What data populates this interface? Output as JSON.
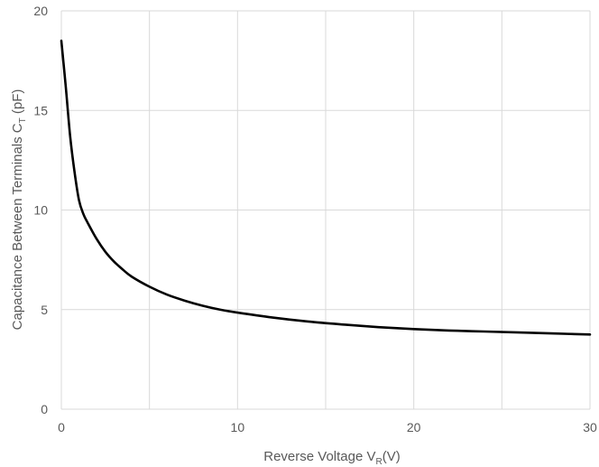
{
  "chart_data": {
    "type": "line",
    "title": "",
    "xlabel": {
      "main": "Reverse Voltage V",
      "sub": "R",
      "tail": "(V)"
    },
    "ylabel": {
      "main": "Capacitance Between Terminals C",
      "sub": "T",
      "tail": " (pF)"
    },
    "xlim": [
      0,
      30
    ],
    "ylim": [
      0,
      20
    ],
    "xticks": [
      0,
      10,
      20,
      30
    ],
    "yticks": [
      0,
      5,
      10,
      15,
      20
    ],
    "xtick_labels": [
      "0",
      "10",
      "20",
      "30"
    ],
    "ytick_labels": [
      "0",
      "5",
      "10",
      "15",
      "20"
    ],
    "grid": true,
    "minor_x_grid": [
      5,
      15,
      25
    ],
    "line_color": "#000000",
    "grid_color": "#d9d9d9",
    "series": [
      {
        "x": [
          0,
          0.25,
          0.5,
          0.75,
          1.0,
          1.25,
          1.5,
          2.0,
          2.5,
          3.0,
          3.5,
          4.0,
          5.0,
          6.0,
          7.0,
          8.0,
          9.0,
          10.0,
          12.0,
          14.0,
          16.0,
          18.0,
          20.0,
          22.0,
          24.0,
          26.0,
          28.0,
          30.0
        ],
        "y": [
          18.5,
          16.2,
          13.7,
          11.9,
          10.5,
          9.8,
          9.35,
          8.55,
          7.9,
          7.4,
          7.0,
          6.65,
          6.15,
          5.75,
          5.45,
          5.2,
          5.0,
          4.85,
          4.6,
          4.4,
          4.25,
          4.12,
          4.02,
          3.95,
          3.9,
          3.85,
          3.8,
          3.75
        ]
      }
    ]
  }
}
